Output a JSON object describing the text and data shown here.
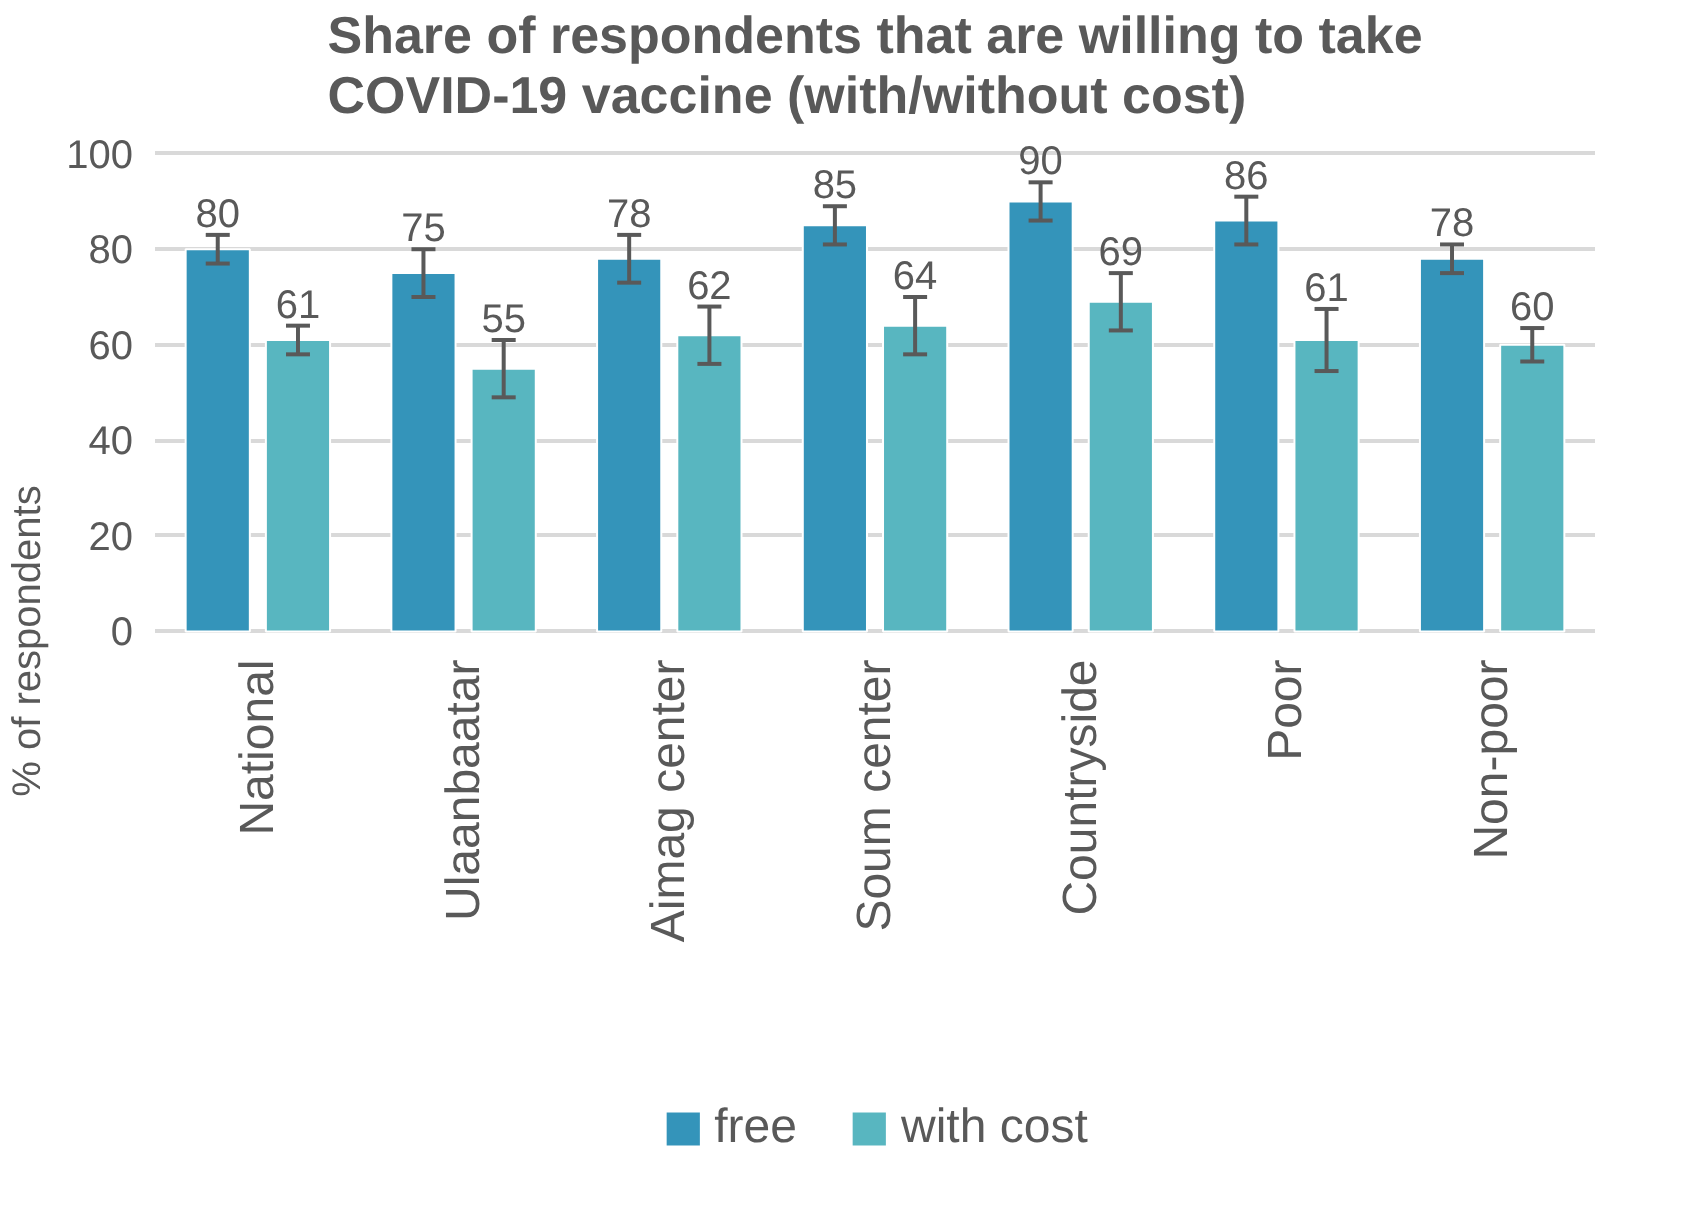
{
  "chart_data": {
    "type": "bar",
    "title": "Share of respondents that are willing to take COVID-19 vaccine (with/without cost)",
    "ylabel": "% of respondents",
    "categories": [
      "National",
      "Ulaanbaatar",
      "Aimag center",
      "Soum center",
      "Countryside",
      "Poor",
      "Non-poor"
    ],
    "series": [
      {
        "name": "free",
        "color": "#3494ba",
        "values": [
          80,
          75,
          78,
          85,
          90,
          86,
          78
        ],
        "errors": [
          3,
          5,
          5,
          4,
          4,
          5,
          3
        ]
      },
      {
        "name": "with cost",
        "color": "#58b6c0",
        "values": [
          61,
          55,
          62,
          64,
          69,
          61,
          60
        ],
        "errors": [
          3,
          6,
          6,
          6,
          6,
          6.5,
          3.5
        ]
      }
    ],
    "ylim": [
      0,
      100
    ],
    "yticks": [
      0,
      20,
      40,
      60,
      80,
      100
    ],
    "grid": "y",
    "legend": "bottom",
    "data_labels": true
  }
}
